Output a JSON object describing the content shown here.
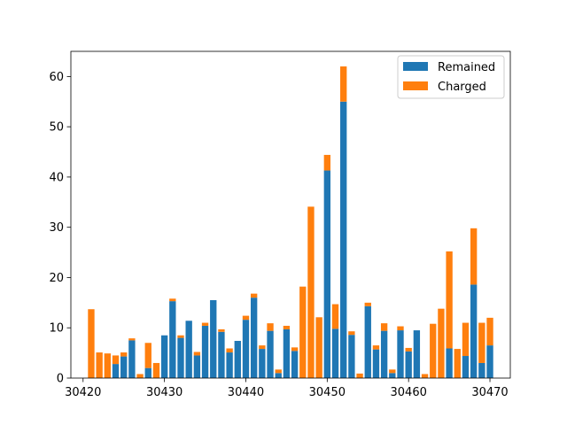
{
  "chart_data": {
    "type": "bar",
    "stacked": true,
    "x": [
      30421,
      30422,
      30423,
      30424,
      30425,
      30426,
      30427,
      30428,
      30429,
      30430,
      30431,
      30432,
      30433,
      30434,
      30435,
      30436,
      30437,
      30438,
      30439,
      30440,
      30441,
      30442,
      30443,
      30444,
      30445,
      30446,
      30447,
      30448,
      30449,
      30450,
      30451,
      30452,
      30453,
      30454,
      30455,
      30456,
      30457,
      30458,
      30459,
      30460,
      30461,
      30462,
      30463,
      30464,
      30465,
      30466,
      30467,
      30468,
      30469,
      30470
    ],
    "series": [
      {
        "name": "Remained",
        "color": "#1f77b4",
        "values": [
          0,
          0,
          0,
          2.8,
          4.3,
          7.5,
          0,
          2,
          0,
          8.5,
          15.3,
          8,
          11.4,
          4.5,
          10.4,
          15.5,
          9.2,
          5.1,
          7.4,
          11.6,
          16,
          5.8,
          9.4,
          1,
          9.7,
          5.4,
          0,
          0,
          0,
          41.3,
          9.8,
          55,
          8.6,
          0,
          14.3,
          5.7,
          9.4,
          1,
          9.5,
          5.3,
          9.5,
          0,
          0,
          0,
          5.9,
          0,
          4.4,
          18.6,
          3,
          6.5
        ]
      },
      {
        "name": "Charged",
        "color": "#ff7f0e",
        "values": [
          13.7,
          5.1,
          4.9,
          1.7,
          0.8,
          0.4,
          0.8,
          5,
          3,
          0,
          0.5,
          0.5,
          0,
          0.7,
          0.6,
          0,
          0.5,
          0.8,
          0,
          0.8,
          0.8,
          0.7,
          1.5,
          0.7,
          0.7,
          0.7,
          18.2,
          34.1,
          12.1,
          3.1,
          4.9,
          7,
          0.7,
          0.9,
          0.7,
          0.8,
          1.5,
          0.7,
          0.8,
          0.7,
          0,
          0.8,
          10.8,
          13.8,
          19.3,
          5.8,
          6.6,
          11.2,
          8,
          5.5
        ]
      }
    ],
    "title": "",
    "xlabel": "",
    "ylabel": "",
    "xlim": [
      30418.5,
      30472.5
    ],
    "ylim": [
      0,
      65
    ],
    "xticks": [
      30420,
      30430,
      30440,
      30450,
      30460,
      30470
    ],
    "yticks": [
      0,
      10,
      20,
      30,
      40,
      50,
      60
    ],
    "grid": false,
    "legend": "top-right"
  }
}
